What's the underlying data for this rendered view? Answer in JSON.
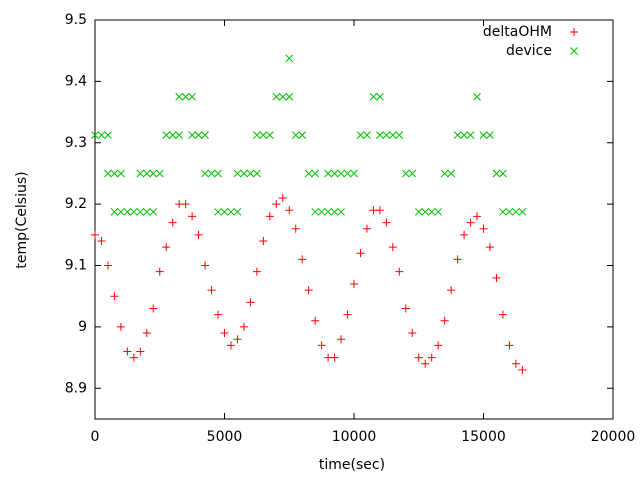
{
  "chart_data": {
    "type": "scatter",
    "xlabel": "time(sec)",
    "ylabel": "temp(Celsius)",
    "xlim": [
      0,
      20000
    ],
    "xticks": [
      0,
      5000,
      10000,
      15000,
      20000
    ],
    "ylim": [
      8.85,
      9.5
    ],
    "yticks": [
      8.9,
      9,
      9.1,
      9.2,
      9.3,
      9.4,
      9.5
    ],
    "grid": false,
    "legend": "top-right",
    "series": [
      {
        "name": "deltaOHM",
        "color": "#ff0000",
        "marker": "plus",
        "x": [
          0,
          250,
          500,
          750,
          1000,
          1250,
          1500,
          1750,
          2000,
          2250,
          2500,
          2750,
          3000,
          3250,
          3500,
          3750,
          4000,
          4250,
          4500,
          4750,
          5000,
          5250,
          5500,
          5750,
          6000,
          6250,
          6500,
          6750,
          7000,
          7250,
          7500,
          7750,
          8000,
          8250,
          8500,
          8750,
          9000,
          9250,
          9500,
          9750,
          10000,
          10250,
          10500,
          10750,
          11000,
          11250,
          11500,
          11750,
          12000,
          12250,
          12500,
          12750,
          13000,
          13250,
          13500,
          13750,
          14000,
          14250,
          14500,
          14750,
          15000,
          15250,
          15500,
          15750,
          16000,
          16250,
          16500
        ],
        "values": [
          9.15,
          9.14,
          9.1,
          9.05,
          9.0,
          8.96,
          8.95,
          8.96,
          8.99,
          9.03,
          9.09,
          9.13,
          9.17,
          9.2,
          9.2,
          9.18,
          9.15,
          9.1,
          9.06,
          9.02,
          8.99,
          8.97,
          8.98,
          9.0,
          9.04,
          9.09,
          9.14,
          9.18,
          9.2,
          9.21,
          9.19,
          9.16,
          9.11,
          9.06,
          9.01,
          8.97,
          8.95,
          8.95,
          8.98,
          9.02,
          9.07,
          9.12,
          9.16,
          9.19,
          9.19,
          9.17,
          9.13,
          9.09,
          9.03,
          8.99,
          8.95,
          8.94,
          8.95,
          8.97,
          9.01,
          9.06,
          9.11,
          9.15,
          9.17,
          9.18,
          9.16,
          9.13,
          9.08,
          9.02,
          8.97,
          8.94,
          8.93
        ]
      },
      {
        "name": "device",
        "color": "#00c000",
        "marker": "cross",
        "x": [
          0,
          250,
          500,
          500,
          750,
          1000,
          750,
          1000,
          1250,
          1500,
          1750,
          2000,
          2250,
          1750,
          2000,
          2250,
          2500,
          2750,
          3000,
          3250,
          3250,
          3500,
          3750,
          3750,
          4000,
          4250,
          4250,
          4500,
          4750,
          4750,
          5000,
          5250,
          5500,
          5500,
          5750,
          6000,
          6250,
          6250,
          6500,
          6750,
          7000,
          7250,
          7500,
          7500,
          7750,
          8000,
          8250,
          8500,
          8500,
          8750,
          9000,
          9250,
          9500,
          9000,
          9250,
          9500,
          9750,
          10000,
          10250,
          10500,
          10750,
          11000,
          11000,
          11250,
          11500,
          11750,
          12000,
          12250,
          12500,
          12750,
          13000,
          13250,
          13500,
          13750,
          14000,
          14250,
          14500,
          14750,
          15000,
          15250,
          15500,
          15750,
          15750,
          16000,
          16250,
          16500
        ],
        "values": [
          9.3125,
          9.3125,
          9.3125,
          9.25,
          9.25,
          9.25,
          9.1875,
          9.1875,
          9.1875,
          9.1875,
          9.1875,
          9.1875,
          9.1875,
          9.25,
          9.25,
          9.25,
          9.25,
          9.3125,
          9.3125,
          9.3125,
          9.375,
          9.375,
          9.375,
          9.3125,
          9.3125,
          9.3125,
          9.25,
          9.25,
          9.25,
          9.1875,
          9.1875,
          9.1875,
          9.1875,
          9.25,
          9.25,
          9.25,
          9.25,
          9.3125,
          9.3125,
          9.3125,
          9.375,
          9.375,
          9.375,
          9.4375,
          9.3125,
          9.3125,
          9.25,
          9.25,
          9.1875,
          9.1875,
          9.1875,
          9.1875,
          9.1875,
          9.25,
          9.25,
          9.25,
          9.25,
          9.25,
          9.3125,
          9.3125,
          9.375,
          9.375,
          9.3125,
          9.3125,
          9.3125,
          9.3125,
          9.25,
          9.25,
          9.1875,
          9.1875,
          9.1875,
          9.1875,
          9.25,
          9.25,
          9.3125,
          9.3125,
          9.3125,
          9.375,
          9.3125,
          9.3125,
          9.25,
          9.25,
          9.1875,
          9.1875,
          9.1875,
          9.1875
        ]
      }
    ]
  }
}
